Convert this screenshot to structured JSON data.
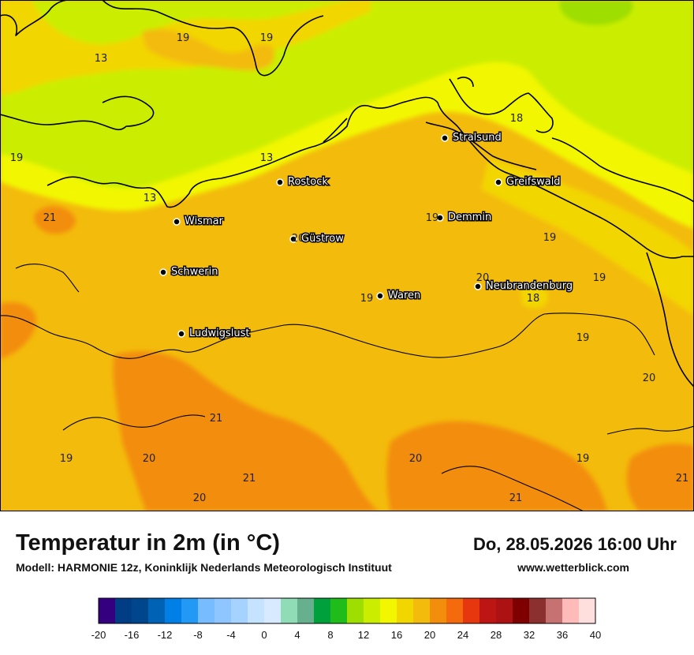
{
  "title": "Temperatur in 2m (in °C)",
  "subtitle": "Modell: HARMONIE 12z, Koninklijk Nederlands Meteorologisch Instituut",
  "datetime": "Do, 28.05.2026 16:00 Uhr",
  "website": "www.wetterblick.com",
  "cities": [
    {
      "name": "Stralsund"
    },
    {
      "name": "Rostock"
    },
    {
      "name": "Greifswald"
    },
    {
      "name": "Wismar"
    },
    {
      "name": "Demmin"
    },
    {
      "name": "Güstrow"
    },
    {
      "name": "Schwerin"
    },
    {
      "name": "Neubrandenburg"
    },
    {
      "name": "Waren"
    },
    {
      "name": "Ludwigslust"
    }
  ],
  "temperature_labels": [
    "19",
    "19",
    "13",
    "18",
    "19",
    "13",
    "13",
    "21",
    "19",
    "20",
    "19",
    "19",
    "20",
    "19",
    "18",
    "19",
    "19",
    "20",
    "21",
    "19",
    "20",
    "21",
    "20",
    "19",
    "21",
    "20",
    "21"
  ],
  "legend": {
    "ticks": [
      "-20",
      "-16",
      "-12",
      "-8",
      "-4",
      "0",
      "4",
      "8",
      "12",
      "16",
      "20",
      "24",
      "28",
      "32",
      "36",
      "40"
    ],
    "colors": [
      "#35007f",
      "#003d85",
      "#00468d",
      "#0062b5",
      "#007fe6",
      "#2199f5",
      "#77bcff",
      "#8fc6ff",
      "#a6d2ff",
      "#c5e2ff",
      "#d8eaff",
      "#90dcb6",
      "#66b08e",
      "#00a13c",
      "#1fbc1a",
      "#9ede00",
      "#cbee00",
      "#f2f700",
      "#f2d600",
      "#f3bb0c",
      "#f38d0c",
      "#f46a0c",
      "#e6370e",
      "#bd1414",
      "#ad1212",
      "#7f0000",
      "#8c2f2f",
      "#c77272",
      "#ffbaba",
      "#ffdede"
    ]
  },
  "chart_data": {
    "type": "heatmap",
    "title": "Temperatur in 2m (in °C)",
    "colorbar": {
      "ticks": [
        -20,
        -16,
        -12,
        -8,
        -4,
        0,
        4,
        8,
        12,
        16,
        20,
        24,
        28,
        32,
        36,
        40
      ],
      "range": [
        -20,
        40
      ],
      "step": 2
    },
    "value_labels": [
      19,
      19,
      13,
      18,
      19,
      13,
      13,
      21,
      19,
      20,
      19,
      19,
      20,
      19,
      18,
      19,
      19,
      20,
      21,
      19,
      20,
      21,
      20,
      19,
      21,
      20,
      21
    ]
  }
}
